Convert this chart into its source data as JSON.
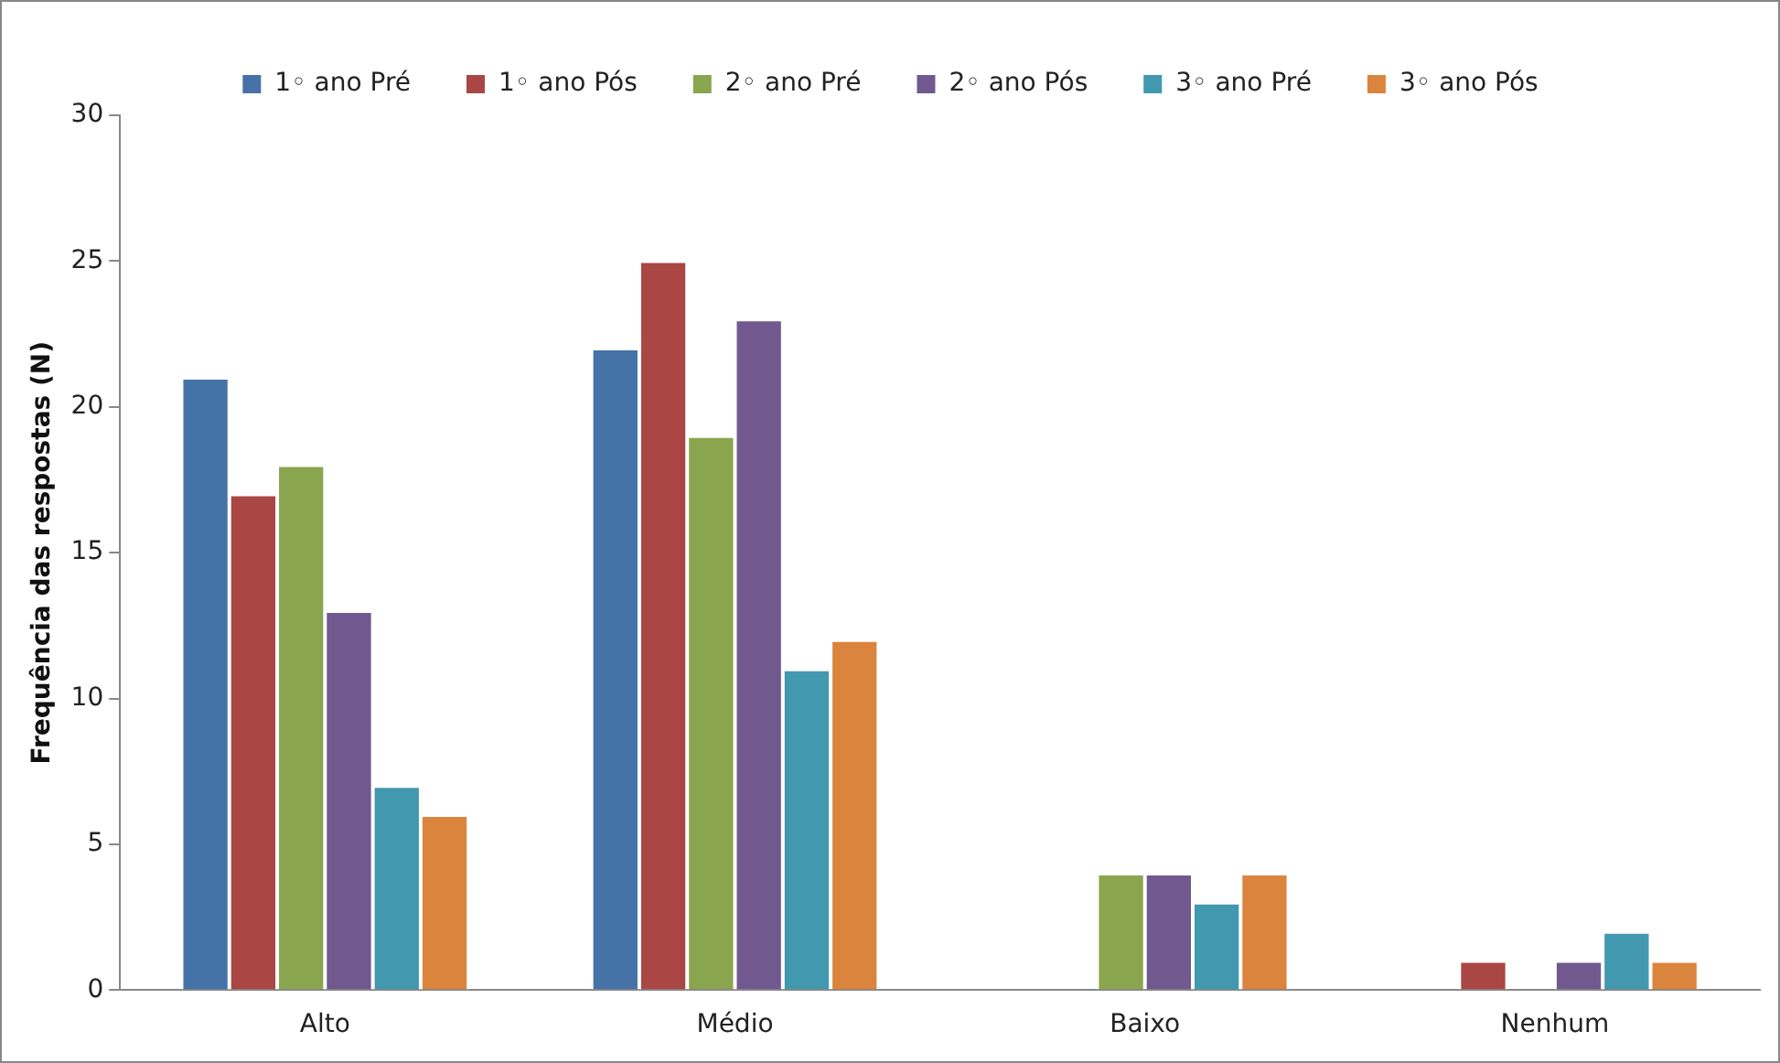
{
  "chart_data": {
    "type": "bar",
    "ylabel": "Frequência das respostas (N)",
    "categories": [
      "Alto",
      "Médio",
      "Baixo",
      "Nenhum"
    ],
    "ylim": [
      0,
      30
    ],
    "yticks": [
      0,
      5,
      10,
      15,
      20,
      25,
      30
    ],
    "grid": false,
    "legend": "top",
    "series": [
      {
        "name": "1◦ ano Pré",
        "color": "#4572a7",
        "values": [
          21,
          22,
          0,
          0
        ]
      },
      {
        "name": "1◦ ano Pós",
        "color": "#aa4643",
        "values": [
          17,
          25,
          0,
          1
        ]
      },
      {
        "name": "2◦ ano Pré",
        "color": "#89a54e",
        "values": [
          18,
          19,
          4,
          0
        ]
      },
      {
        "name": "2◦ ano Pós",
        "color": "#71588f",
        "values": [
          13,
          23,
          4,
          1
        ]
      },
      {
        "name": "3◦ ano Pré",
        "color": "#4198af",
        "values": [
          7,
          11,
          3,
          2
        ]
      },
      {
        "name": "3◦ ano Pós",
        "color": "#db843d",
        "values": [
          6,
          12,
          4,
          1
        ]
      }
    ]
  }
}
